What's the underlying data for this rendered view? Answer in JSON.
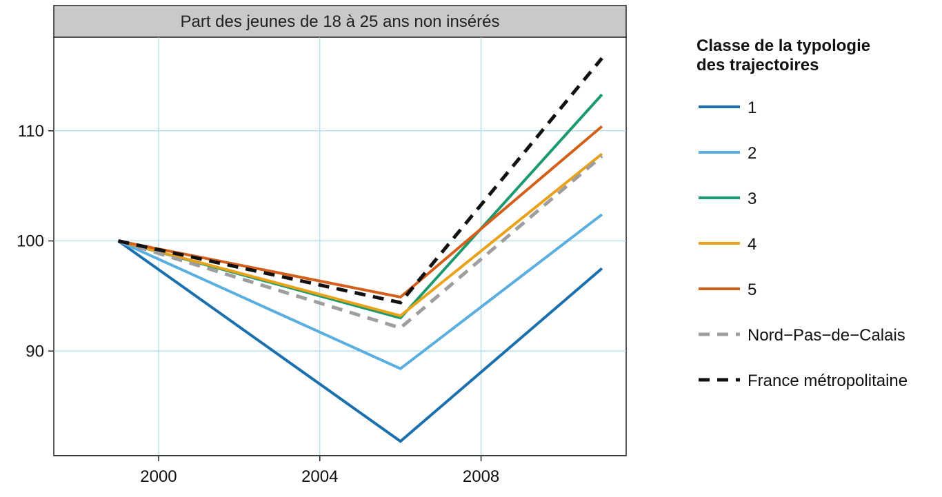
{
  "chart_data": {
    "type": "line",
    "title": "Part des jeunes de 18 à 25 ans non insérés",
    "xlabel": "",
    "ylabel": "",
    "x": [
      1999,
      2006,
      2011
    ],
    "xlim": [
      1997.4,
      2011.6
    ],
    "ylim": [
      80.5,
      118.5
    ],
    "xticks": [
      2000,
      2004,
      2008
    ],
    "yticks": [
      90,
      100,
      110
    ],
    "grid": true,
    "legend_title": "Classe de la typologie des trajectoires",
    "legend_title_lines": [
      "Classe de la typologie",
      "des trajectoires"
    ],
    "legend_position": "right",
    "series": [
      {
        "name": "1",
        "values": [
          100,
          81.8,
          97.5
        ],
        "color": "#1a6fae",
        "dashed": false
      },
      {
        "name": "2",
        "values": [
          100,
          88.4,
          102.4
        ],
        "color": "#5aaee0",
        "dashed": false
      },
      {
        "name": "3",
        "values": [
          100,
          93.0,
          113.3
        ],
        "color": "#1b9a6d",
        "dashed": false
      },
      {
        "name": "4",
        "values": [
          100,
          93.2,
          107.9
        ],
        "color": "#e9a21a",
        "dashed": false
      },
      {
        "name": "5",
        "values": [
          100,
          94.9,
          110.4
        ],
        "color": "#d35f1a",
        "dashed": false
      },
      {
        "name": "Nord−Pas−de−Calais",
        "values": [
          100,
          92.1,
          107.7
        ],
        "color": "#9e9e9e",
        "dashed": true
      },
      {
        "name": "France métropolitaine",
        "values": [
          100,
          94.4,
          116.6
        ],
        "color": "#111111",
        "dashed": true
      }
    ],
    "colors": {
      "grid": "#a8daf0",
      "title_bar": "#c9c9c9"
    }
  }
}
